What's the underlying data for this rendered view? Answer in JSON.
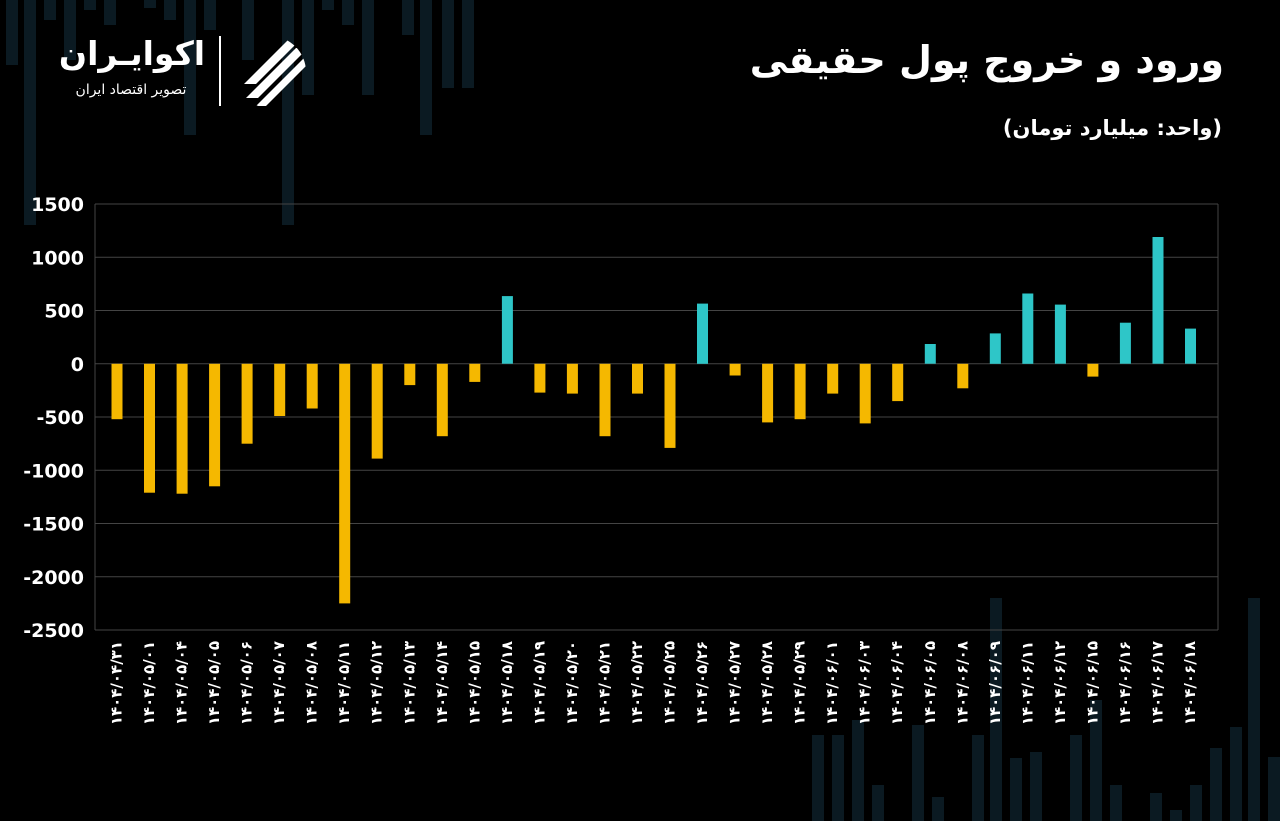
{
  "title": "ورود و خروج پول حقیقی",
  "subtitle": "(واحد: میلیارد تومان)",
  "brand": {
    "name": "اکوایـران",
    "tagline": "تصویر اقتصاد ایران",
    "logo_icon": "ecoiran-stripes-logo"
  },
  "colors": {
    "positive": "#2ec6c8",
    "negative": "#f5b800",
    "background": "#000000",
    "grid": "#444444",
    "text": "#ffffff"
  },
  "chart_data": {
    "type": "bar",
    "title": "ورود و خروج پول حقیقی",
    "ylabel": "",
    "xlabel": "",
    "ylim": [
      -2500,
      1500
    ],
    "yticks": [
      1500,
      1000,
      500,
      0,
      -500,
      -1000,
      -1500,
      -2000,
      -2500
    ],
    "ytick_labels": [
      "1500",
      "1000",
      "500",
      "0",
      "-500",
      "-1000",
      "-1500",
      "-2000",
      "-2500"
    ],
    "grid": true,
    "categories": [
      "۱۴۰۴/۰۴/۳۱",
      "۱۴۰۴/۰۵/۰۱",
      "۱۴۰۴/۰۵/۰۴",
      "۱۴۰۴/۰۵/۰۵",
      "۱۴۰۴/۰۵/۰۶",
      "۱۴۰۴/۰۵/۰۷",
      "۱۴۰۴/۰۵/۰۸",
      "۱۴۰۴/۰۵/۱۱",
      "۱۴۰۴/۰۵/۱۲",
      "۱۴۰۴/۰۵/۱۳",
      "۱۴۰۴/۰۵/۱۴",
      "۱۴۰۴/۰۵/۱۵",
      "۱۴۰۴/۰۵/۱۸",
      "۱۴۰۴/۰۵/۱۹",
      "۱۴۰۴/۰۵/۲۰",
      "۱۴۰۴/۰۵/۲۱",
      "۱۴۰۴/۰۵/۲۲",
      "۱۴۰۴/۰۵/۲۵",
      "۱۴۰۴/۰۵/۲۶",
      "۱۴۰۴/۰۵/۲۷",
      "۱۴۰۴/۰۵/۲۸",
      "۱۴۰۴/۰۵/۲۹",
      "۱۴۰۴/۰۶/۰۱",
      "۱۴۰۴/۰۶/۰۳",
      "۱۴۰۴/۰۶/۰۴",
      "۱۴۰۴/۰۶/۰۵",
      "۱۴۰۴/۰۶/۰۸",
      "۱۴۰۴/۰۶/۰۹",
      "۱۴۰۴/۰۶/۱۱",
      "۱۴۰۴/۰۶/۱۲",
      "۱۴۰۴/۰۶/۱۵",
      "۱۴۰۴/۰۶/۱۶",
      "۱۴۰۴/۰۶/۱۷",
      "۱۴۰۴/۰۶/۱۸"
    ],
    "values": [
      -520,
      -1210,
      -1220,
      -1150,
      -750,
      -490,
      -420,
      -2250,
      -890,
      -200,
      -680,
      -170,
      635,
      -270,
      -280,
      -680,
      -280,
      -790,
      565,
      -110,
      -550,
      -520,
      -280,
      -560,
      -350,
      185,
      -230,
      285,
      660,
      555,
      -120,
      385,
      1190,
      330
    ]
  }
}
